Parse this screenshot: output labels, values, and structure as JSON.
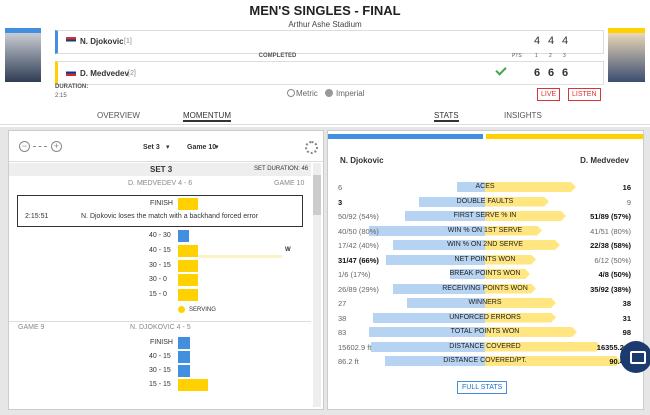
{
  "header": {
    "title": "MEN'S SINGLES - FINAL",
    "venue": "Arthur Ashe Stadium"
  },
  "scoreboard": {
    "columns": [
      "PTS",
      "1",
      "2",
      "3"
    ],
    "status": "COMPLETED",
    "players": [
      {
        "name": "N. Djokovic",
        "seed": "[1]",
        "sets": [
          "4",
          "4",
          "4"
        ]
      },
      {
        "name": "D. Medvedev",
        "seed": "[2]",
        "sets": [
          "6",
          "6",
          "6"
        ]
      }
    ],
    "duration_label": "DURATION:",
    "duration": "2:15",
    "units": [
      "Metric",
      "Imperial"
    ],
    "buttons": [
      "LIVE",
      "LISTEN"
    ]
  },
  "tabs": [
    "OVERVIEW",
    "MOMENTUM",
    "STATS",
    "INSIGHTS"
  ],
  "momentum": {
    "set_select": "Set 3",
    "game_select": "Game 10",
    "set_title": "SET 3",
    "set_duration": "SET DURATION: 46",
    "games": [
      {
        "label": "GAME 10",
        "score": "D. MEDVEDEV 4 - 6",
        "finish": "FINISH",
        "time": "2:15:51",
        "note": "N. Djokovic loses the match with a backhand forced error",
        "points": [
          "40 - 30",
          "40 - 15",
          "30 - 15",
          "30 - 0",
          "15 - 0"
        ],
        "winner_mark": "W",
        "serving": "SERVING"
      },
      {
        "label": "GAME 9",
        "score": "N. DJOKOVIC 4 - 5",
        "finish": "FINISH",
        "points": [
          "40 - 15",
          "30 - 15",
          "15 - 15"
        ]
      }
    ]
  },
  "stats": {
    "players": [
      "N. Djokovic",
      "D. Medvedev"
    ],
    "rows": [
      [
        "6",
        "ACES",
        "16"
      ],
      [
        "3",
        "DOUBLE FAULTS",
        "9"
      ],
      [
        "50/92 (54%)",
        "FIRST SERVE % IN",
        "51/89 (57%)"
      ],
      [
        "40/50 (80%)",
        "WIN % ON 1ST SERVE",
        "41/51 (80%)"
      ],
      [
        "17/42 (40%)",
        "WIN % ON 2ND SERVE",
        "22/38 (58%)"
      ],
      [
        "31/47 (66%)",
        "NET POINTS WON",
        "6/12 (50%)"
      ],
      [
        "1/6 (17%)",
        "BREAK POINTS WON",
        "4/8 (50%)"
      ],
      [
        "26/89 (29%)",
        "RECEIVING POINTS WON",
        "35/92 (38%)"
      ],
      [
        "27",
        "WINNERS",
        "38"
      ],
      [
        "38",
        "UNFORCED ERRORS",
        "31"
      ],
      [
        "83",
        "TOTAL POINTS WON",
        "98"
      ],
      [
        "15602.9 ft",
        "DISTANCE COVERED",
        "16355.2 ft"
      ],
      [
        "86.2 ft",
        "DISTANCE COVERED/PT.",
        "90.4 ft"
      ]
    ],
    "full_stats": "FULL STATS"
  }
}
